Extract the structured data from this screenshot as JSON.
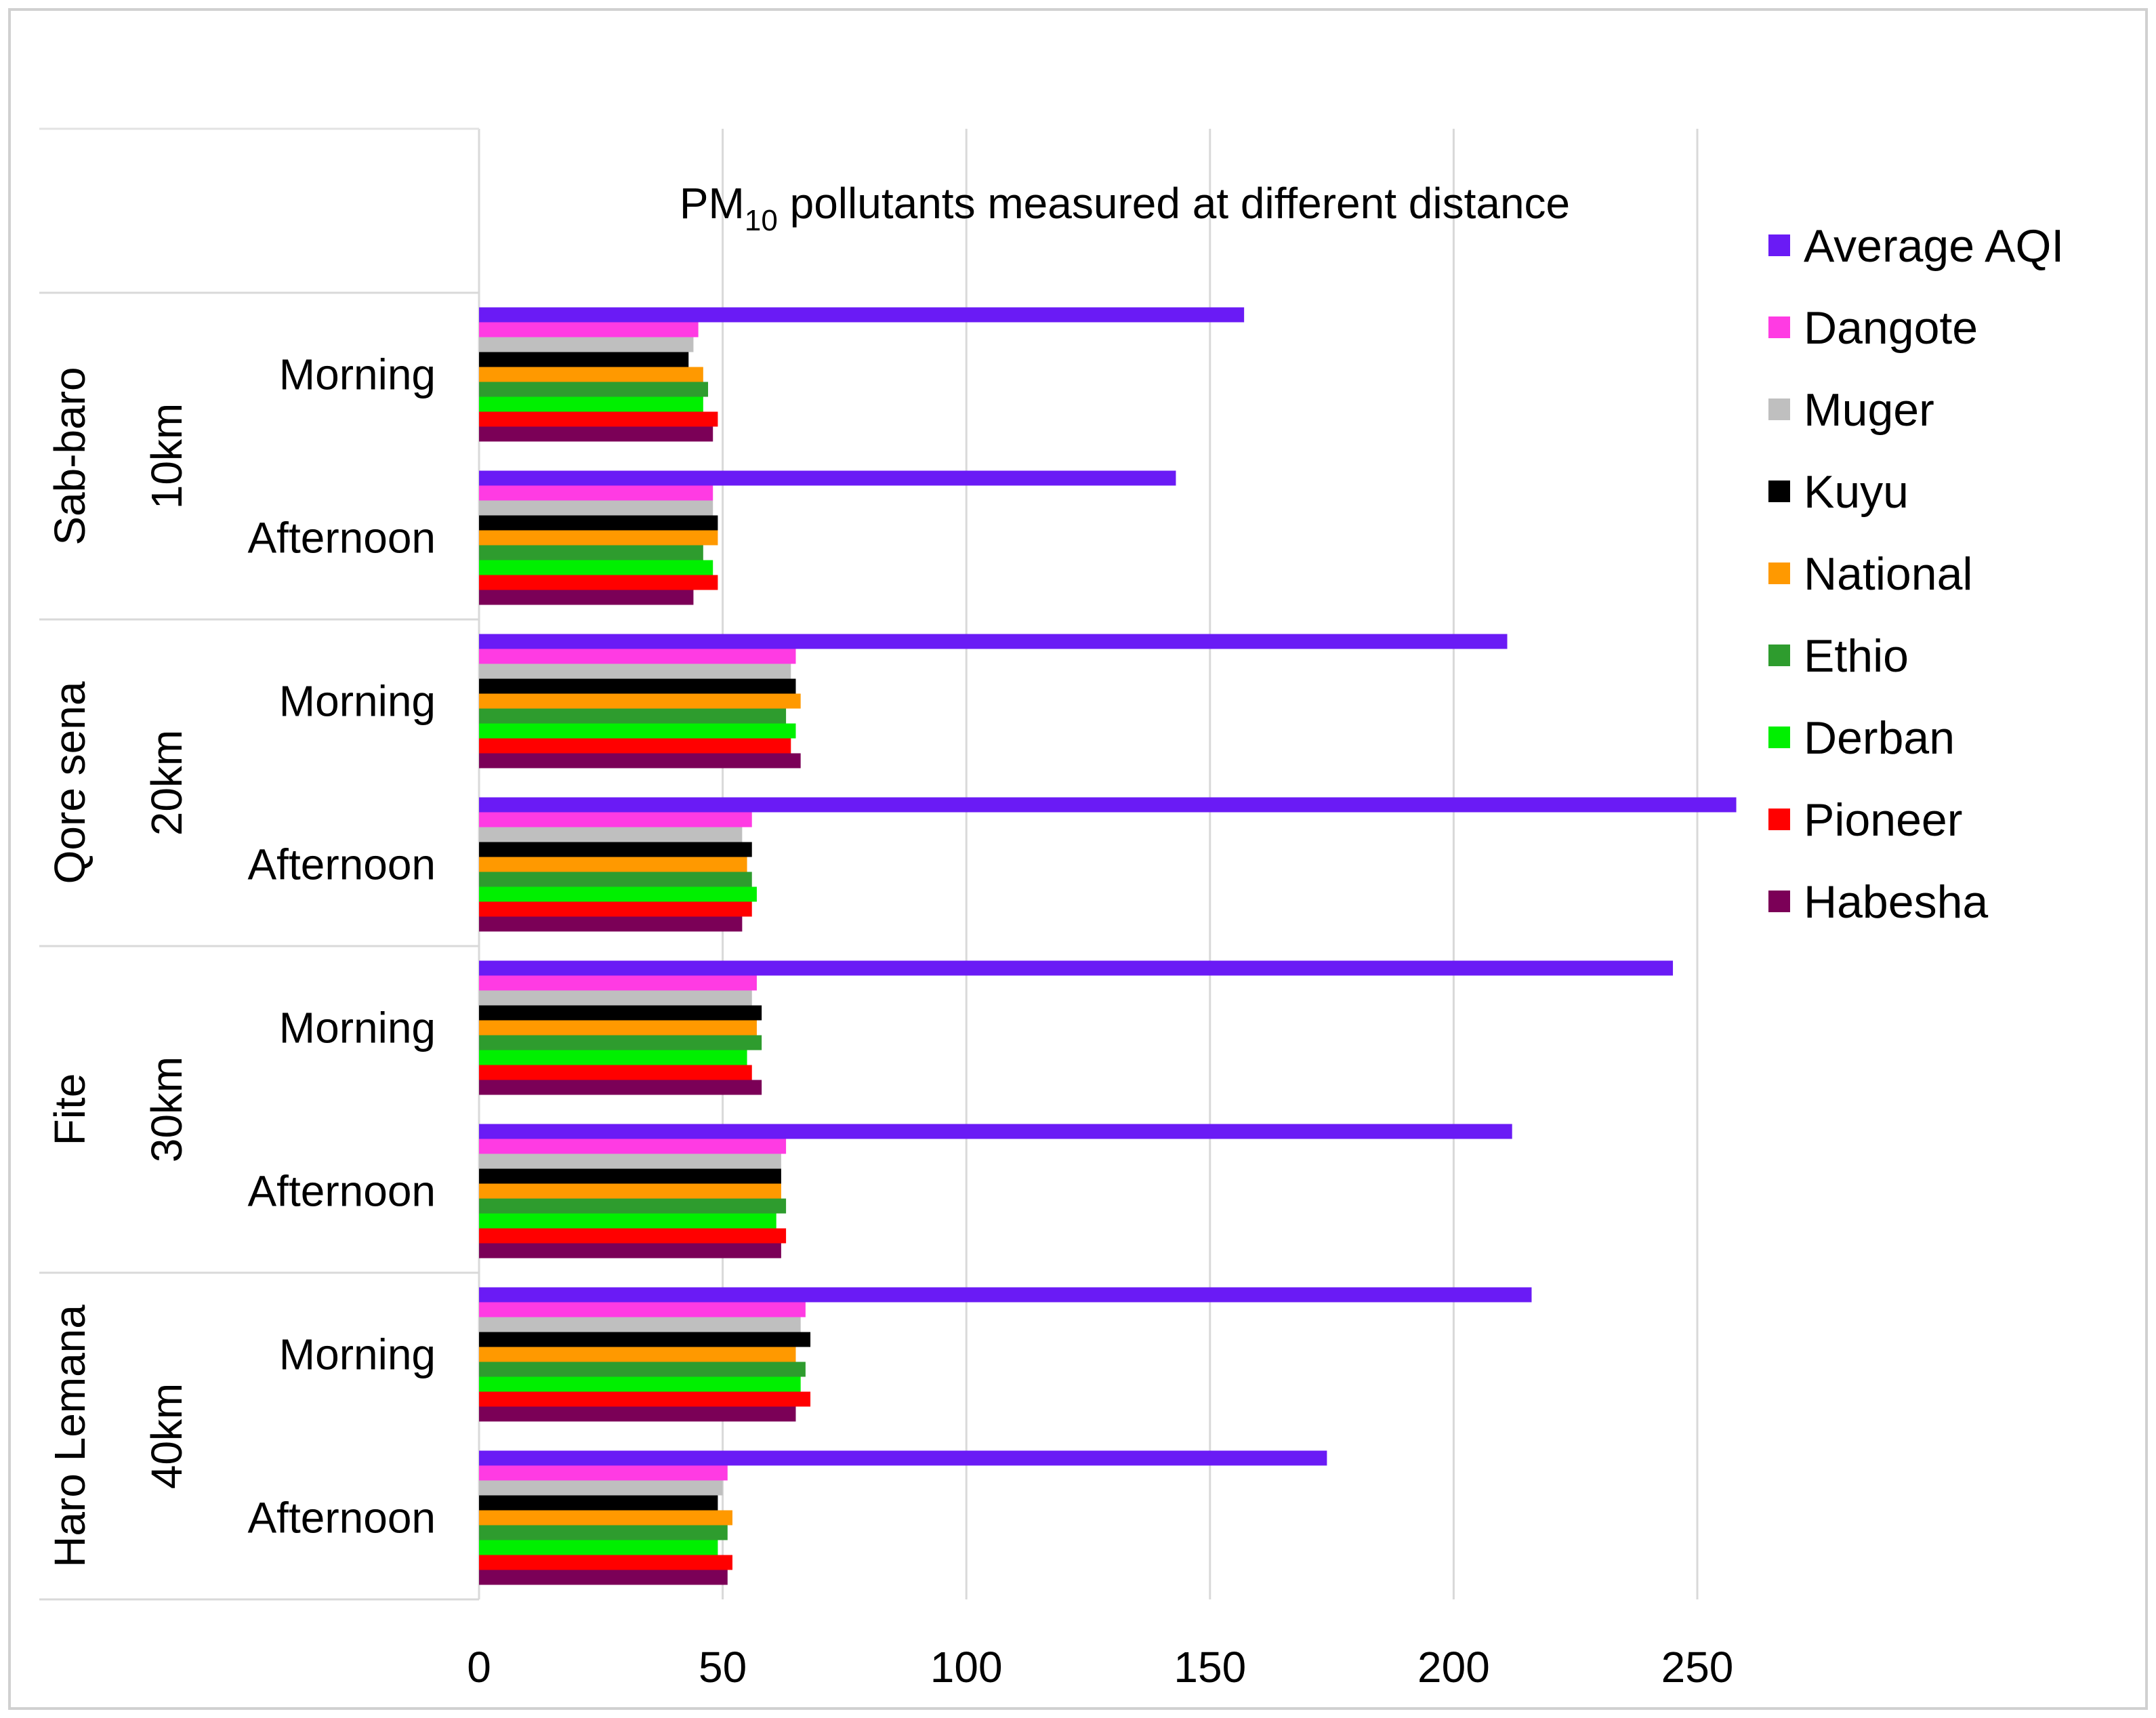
{
  "chart_data": {
    "type": "bar",
    "orientation": "horizontal",
    "title": "PM10 pollutants measured at different distance",
    "title_main": "PM",
    "title_sub": "10",
    "title_rest": " pollutants measured at different distance",
    "xlim": [
      0,
      260
    ],
    "xticks": [
      "0",
      "50",
      "100",
      "150",
      "200",
      "250"
    ],
    "xtick_values": [
      0,
      50,
      100,
      150,
      200,
      250
    ],
    "grid": true,
    "legend_position": "right",
    "groups": [
      {
        "site": "Sab-baro",
        "distance": "10km",
        "periods": [
          {
            "label": "Morning",
            "values": [
              157,
              45,
              44,
              43,
              46,
              47,
              46,
              49,
              48
            ]
          },
          {
            "label": "Afternoon",
            "values": [
              143,
              48,
              48,
              49,
              49,
              46,
              48,
              49,
              44
            ]
          }
        ]
      },
      {
        "site": "Qore sena",
        "distance": "20km",
        "periods": [
          {
            "label": "Morning",
            "values": [
              211,
              65,
              64,
              65,
              66,
              63,
              65,
              64,
              66
            ]
          },
          {
            "label": "Afternoon",
            "values": [
              258,
              56,
              54,
              56,
              55,
              56,
              57,
              56,
              54
            ]
          }
        ]
      },
      {
        "site": "Fite",
        "distance": "30km",
        "periods": [
          {
            "label": "Morning",
            "values": [
              245,
              57,
              56,
              58,
              57,
              58,
              55,
              56,
              58
            ]
          },
          {
            "label": "Afternoon",
            "values": [
              212,
              63,
              62,
              62,
              62,
              63,
              61,
              63,
              62
            ]
          }
        ]
      },
      {
        "site": "Haro Lemana",
        "distance": "40km",
        "periods": [
          {
            "label": "Morning",
            "values": [
              216,
              67,
              66,
              68,
              65,
              67,
              66,
              68,
              65
            ]
          },
          {
            "label": "Afternoon",
            "values": [
              174,
              51,
              50,
              49,
              52,
              51,
              49,
              52,
              51
            ]
          }
        ]
      }
    ],
    "series": [
      {
        "name": "Average AQI",
        "color": "#6A1BF5"
      },
      {
        "name": "Dangote",
        "color": "#FF3BE3"
      },
      {
        "name": "Muger",
        "color": "#BFBFBF"
      },
      {
        "name": "Kuyu",
        "color": "#000000"
      },
      {
        "name": "National",
        "color": "#FF9900"
      },
      {
        "name": "Ethio",
        "color": "#2E9C2E"
      },
      {
        "name": "Derban",
        "color": "#00F000"
      },
      {
        "name": "Pioneer",
        "color": "#FF0000"
      },
      {
        "name": "Habesha",
        "color": "#7B0057"
      }
    ]
  }
}
